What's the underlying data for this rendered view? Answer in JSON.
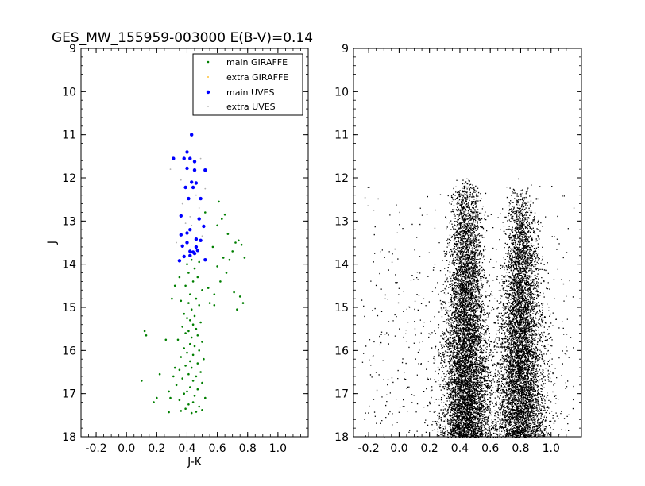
{
  "chart_data": [
    {
      "type": "scatter",
      "title": "GES_MW_155959-003000 E(B-V)=0.14",
      "xlabel": "J-K",
      "ylabel": "J",
      "xlim": [
        -0.3,
        1.2
      ],
      "ylim": [
        18,
        9
      ],
      "y_inverted": true,
      "xticks": [
        "-0.2",
        "0.0",
        "0.2",
        "0.4",
        "0.6",
        "0.8",
        "1.0"
      ],
      "yticks": [
        "9",
        "10",
        "11",
        "12",
        "13",
        "14",
        "15",
        "16",
        "17",
        "18"
      ],
      "legend_position": "top-right",
      "series": [
        {
          "name": "main GIRAFFE",
          "color": "#007f00",
          "marker": "small-dot",
          "points": [
            [
              0.43,
              17.45
            ],
            [
              0.46,
              17.42
            ],
            [
              0.36,
              17.4
            ],
            [
              0.5,
              17.38
            ],
            [
              0.39,
              17.35
            ],
            [
              0.28,
              17.43
            ],
            [
              0.48,
              17.3
            ],
            [
              0.41,
              17.25
            ],
            [
              0.44,
              17.2
            ],
            [
              0.35,
              17.15
            ],
            [
              0.52,
              17.1
            ],
            [
              0.45,
              17.05
            ],
            [
              0.38,
              17.0
            ],
            [
              0.4,
              16.95
            ],
            [
              0.47,
              16.9
            ],
            [
              0.42,
              16.85
            ],
            [
              0.33,
              16.8
            ],
            [
              0.5,
              16.75
            ],
            [
              0.44,
              16.7
            ],
            [
              0.37,
              16.65
            ],
            [
              0.46,
              16.6
            ],
            [
              0.41,
              16.55
            ],
            [
              0.49,
              16.5
            ],
            [
              0.35,
              16.45
            ],
            [
              0.43,
              16.4
            ],
            [
              0.39,
              16.35
            ],
            [
              0.47,
              16.3
            ],
            [
              0.42,
              16.25
            ],
            [
              0.51,
              16.2
            ],
            [
              0.36,
              16.15
            ],
            [
              0.44,
              16.1
            ],
            [
              0.4,
              16.05
            ],
            [
              0.48,
              16.0
            ],
            [
              0.38,
              15.95
            ],
            [
              0.45,
              15.9
            ],
            [
              0.42,
              15.85
            ],
            [
              0.5,
              15.8
            ],
            [
              0.34,
              15.75
            ],
            [
              0.43,
              15.7
            ],
            [
              0.47,
              15.65
            ],
            [
              0.39,
              15.6
            ],
            [
              0.41,
              15.55
            ],
            [
              0.46,
              15.5
            ],
            [
              0.37,
              15.45
            ],
            [
              0.44,
              15.4
            ],
            [
              0.49,
              15.35
            ],
            [
              0.42,
              15.3
            ],
            [
              0.4,
              15.25
            ],
            [
              0.45,
              15.2
            ],
            [
              0.38,
              15.15
            ],
            [
              0.43,
              15.05
            ],
            [
              0.48,
              14.95
            ],
            [
              0.41,
              14.9
            ],
            [
              0.36,
              14.85
            ],
            [
              0.46,
              14.8
            ],
            [
              0.42,
              14.7
            ],
            [
              0.5,
              14.6
            ],
            [
              0.39,
              14.5
            ],
            [
              0.44,
              14.4
            ],
            [
              0.47,
              14.3
            ],
            [
              0.41,
              14.2
            ],
            [
              0.45,
              14.1
            ],
            [
              0.4,
              14.0
            ],
            [
              0.48,
              13.95
            ],
            [
              0.43,
              13.9
            ],
            [
              0.54,
              14.55
            ],
            [
              0.58,
              14.7
            ],
            [
              0.62,
              14.4
            ],
            [
              0.55,
              14.9
            ],
            [
              0.66,
              14.2
            ],
            [
              0.6,
              14.05
            ],
            [
              0.64,
              13.85
            ],
            [
              0.7,
              13.7
            ],
            [
              0.72,
              13.5
            ],
            [
              0.74,
              13.45
            ],
            [
              0.76,
              13.55
            ],
            [
              0.68,
              13.9
            ],
            [
              0.78,
              13.85
            ],
            [
              0.71,
              14.65
            ],
            [
              0.75,
              14.75
            ],
            [
              0.77,
              14.9
            ],
            [
              0.73,
              15.05
            ],
            [
              0.6,
              13.1
            ],
            [
              0.63,
              12.95
            ],
            [
              0.65,
              12.85
            ],
            [
              0.61,
              12.55
            ],
            [
              0.67,
              13.3
            ],
            [
              0.57,
              13.6
            ],
            [
              0.52,
              12.8
            ],
            [
              0.58,
              14.95
            ],
            [
              0.3,
              14.8
            ],
            [
              0.32,
              14.5
            ],
            [
              0.35,
              14.3
            ],
            [
              0.26,
              15.75
            ],
            [
              0.22,
              16.55
            ],
            [
              0.12,
              15.55
            ],
            [
              0.13,
              15.65
            ],
            [
              0.1,
              16.7
            ],
            [
              0.18,
              17.2
            ],
            [
              0.2,
              17.1
            ],
            [
              0.28,
              16.95
            ],
            [
              0.31,
              16.6
            ],
            [
              0.29,
              17.1
            ],
            [
              0.32,
              16.4
            ]
          ]
        },
        {
          "name": "extra GIRAFFE",
          "color": "#ffb000",
          "marker": "tiny-dot",
          "points": []
        },
        {
          "name": "main UVES",
          "color": "#0000ff",
          "marker": "dot",
          "points": [
            [
              0.43,
              11.0
            ],
            [
              0.4,
              11.4
            ],
            [
              0.42,
              11.55
            ],
            [
              0.38,
              11.55
            ],
            [
              0.31,
              11.55
            ],
            [
              0.45,
              11.62
            ],
            [
              0.4,
              11.78
            ],
            [
              0.45,
              11.82
            ],
            [
              0.52,
              11.82
            ],
            [
              0.43,
              12.1
            ],
            [
              0.46,
              12.12
            ],
            [
              0.44,
              12.22
            ],
            [
              0.39,
              12.22
            ],
            [
              0.41,
              12.48
            ],
            [
              0.49,
              12.48
            ],
            [
              0.36,
              12.88
            ],
            [
              0.48,
              12.95
            ],
            [
              0.51,
              13.12
            ],
            [
              0.42,
              13.2
            ],
            [
              0.4,
              13.28
            ],
            [
              0.36,
              13.32
            ],
            [
              0.46,
              13.42
            ],
            [
              0.49,
              13.45
            ],
            [
              0.4,
              13.5
            ],
            [
              0.37,
              13.58
            ],
            [
              0.46,
              13.6
            ],
            [
              0.47,
              13.68
            ],
            [
              0.42,
              13.7
            ],
            [
              0.44,
              13.72
            ],
            [
              0.45,
              13.75
            ],
            [
              0.42,
              13.8
            ],
            [
              0.38,
              13.82
            ],
            [
              0.52,
              13.9
            ],
            [
              0.35,
              13.92
            ]
          ]
        },
        {
          "name": "extra UVES",
          "color": "#b0b0b0",
          "marker": "tiny-dot",
          "points": [
            [
              0.29,
              11.8
            ],
            [
              0.49,
              11.55
            ],
            [
              0.36,
              12.05
            ],
            [
              0.52,
              12.25
            ],
            [
              0.46,
              12.4
            ],
            [
              0.37,
              12.6
            ],
            [
              0.42,
              12.9
            ],
            [
              0.39,
              13.05
            ],
            [
              0.5,
              13.35
            ],
            [
              0.33,
              13.5
            ],
            [
              0.43,
              13.1
            ],
            [
              0.48,
              12.7
            ]
          ]
        }
      ]
    },
    {
      "type": "scatter",
      "title": "",
      "xlabel": "",
      "ylabel": "",
      "xlim": [
        -0.3,
        1.2
      ],
      "ylim": [
        18,
        9
      ],
      "y_inverted": true,
      "xticks": [
        "-0.2",
        "0.0",
        "0.2",
        "0.4",
        "0.6",
        "0.8",
        "1.0"
      ],
      "yticks": [
        "9",
        "10",
        "11",
        "12",
        "13",
        "14",
        "15",
        "16",
        "17",
        "18"
      ],
      "series": [
        {
          "color": "#000000",
          "marker": "tiny-dot",
          "description_density": {
            "point_count": 14000,
            "j_range": [
              12.0,
              18.0
            ],
            "main_branches": [
              {
                "center_jk": 0.44,
                "spread": 0.07,
                "j_start": 12.0
              },
              {
                "center_jk": 0.8,
                "spread": 0.07,
                "j_start": 12.2
              }
            ],
            "sparse_outliers_jk_range": [
              -0.25,
              1.15
            ]
          }
        }
      ]
    }
  ]
}
